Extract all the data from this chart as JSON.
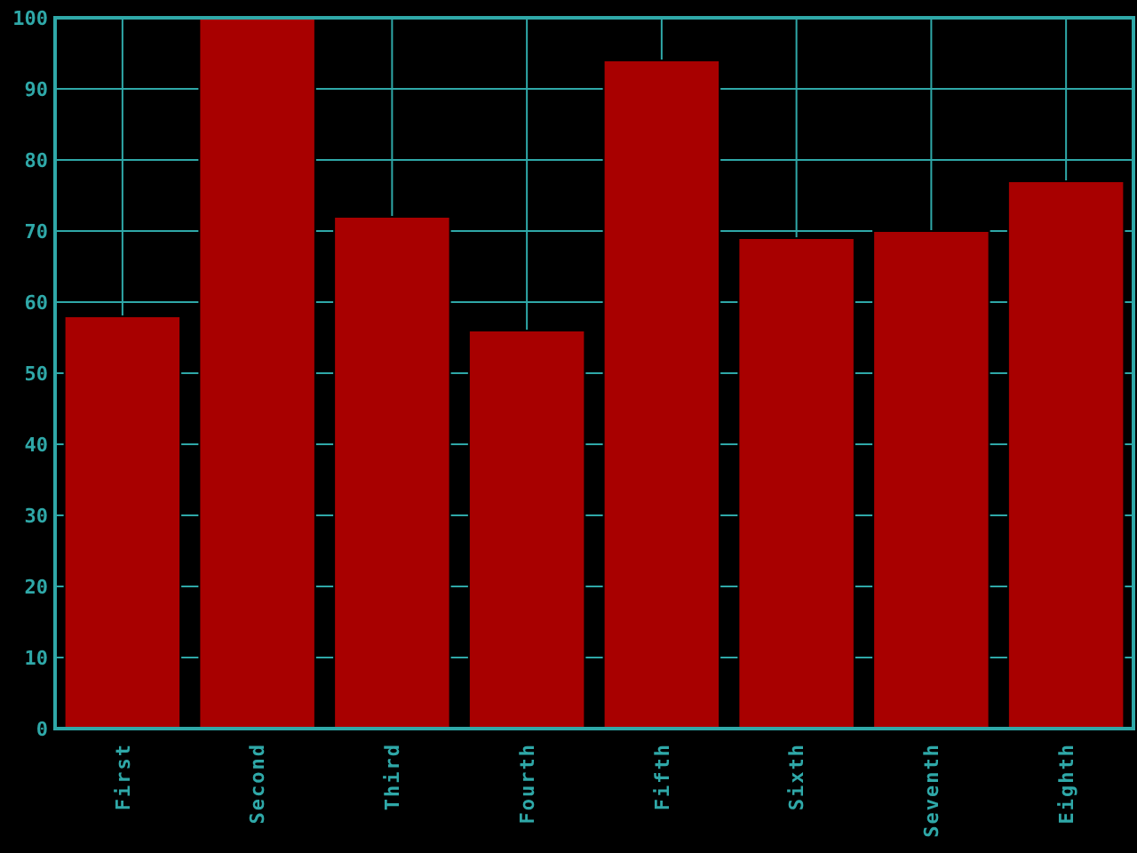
{
  "chart_data": {
    "type": "bar",
    "categories": [
      "First",
      "Second",
      "Third",
      "Fourth",
      "Fifth",
      "Sixth",
      "Seventh",
      "Eighth"
    ],
    "values": [
      58,
      100,
      72,
      56,
      94,
      69,
      70,
      77
    ],
    "color": "#a80000",
    "ylim": [
      0,
      100
    ],
    "yticks": [
      0,
      10,
      20,
      30,
      40,
      50,
      60,
      70,
      80,
      90,
      100
    ],
    "grid": true
  }
}
